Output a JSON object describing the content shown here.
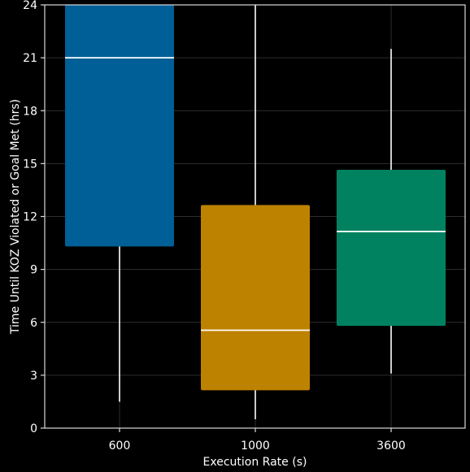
{
  "chart_data": {
    "type": "box",
    "xlabel": "Execution Rate (s)",
    "ylabel": "Time Until KOZ Violated or Goal Met (hrs)",
    "categories": [
      "600",
      "1000",
      "3600"
    ],
    "ylim": [
      0,
      24
    ],
    "yticks": [
      0,
      3,
      6,
      9,
      12,
      15,
      18,
      21,
      24
    ],
    "grid": true,
    "legend": "none",
    "series": [
      {
        "category": "600",
        "whisker_low": 1.5,
        "q1": 10.3,
        "median": 21.0,
        "q3": 24.0,
        "whisker_high": 24.0,
        "color": "#005f96"
      },
      {
        "category": "1000",
        "whisker_low": 0.5,
        "q1": 2.15,
        "median": 5.55,
        "q3": 12.65,
        "whisker_high": 24.0,
        "color": "#bd8200"
      },
      {
        "category": "3600",
        "whisker_low": 3.1,
        "q1": 5.8,
        "median": 11.15,
        "q3": 14.65,
        "whisker_high": 21.5,
        "color": "#008260"
      }
    ]
  }
}
